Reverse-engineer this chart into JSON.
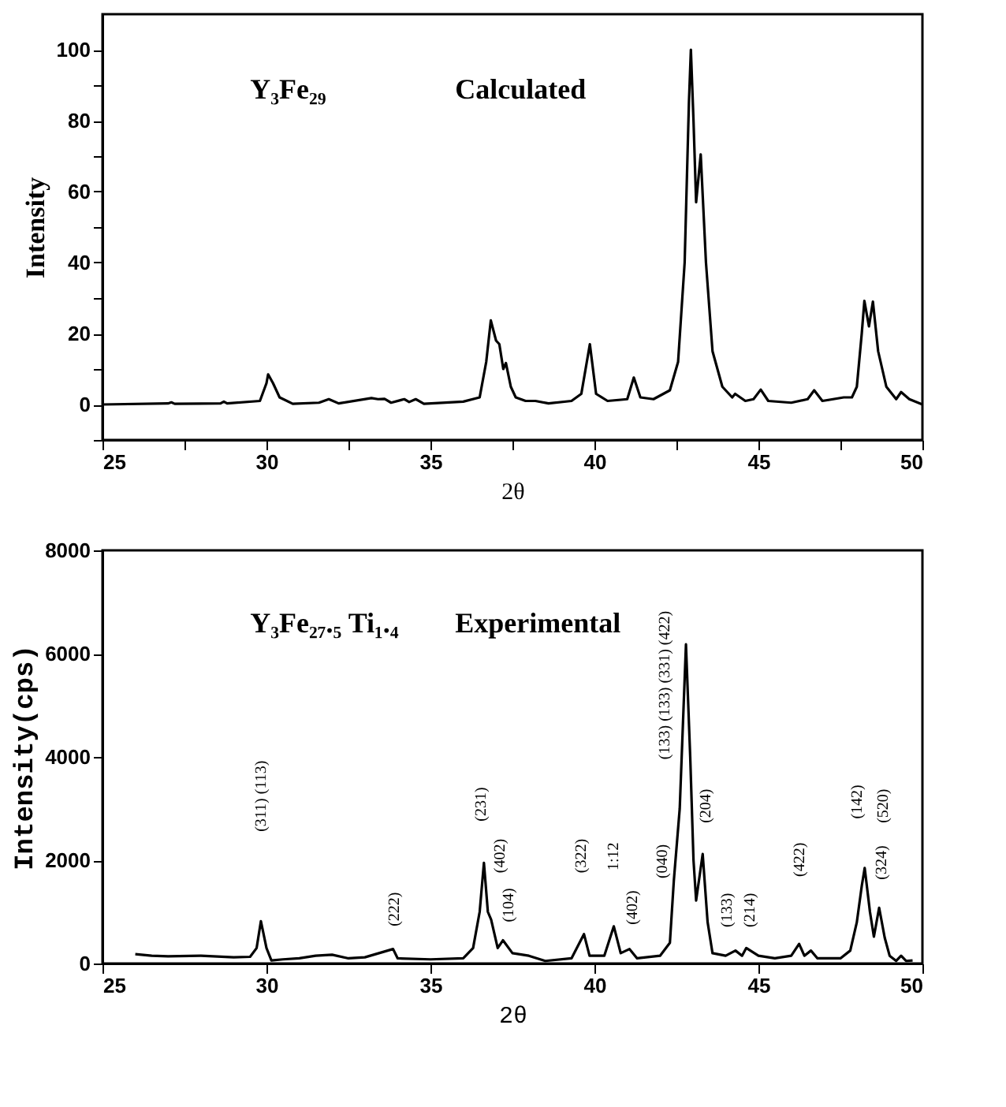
{
  "chart_data": [
    {
      "type": "line",
      "xlabel": "2θ",
      "ylabel": "Intensity",
      "xlim": [
        25,
        50
      ],
      "ylim": [
        -10,
        110
      ],
      "xticks": [
        25,
        {
          "value": 27.5,
          "label": null
        },
        30,
        {
          "value": 32.5,
          "label": null
        },
        35,
        {
          "value": 37.5,
          "label": null
        },
        40,
        {
          "value": 42.5,
          "label": null
        },
        45,
        {
          "value": 47.5,
          "label": null
        },
        50
      ],
      "yticks": [
        {
          "value": -10,
          "label": null
        },
        0,
        {
          "value": 10,
          "label": null
        },
        20,
        {
          "value": 30,
          "label": null
        },
        40,
        {
          "value": 50,
          "label": null
        },
        60,
        {
          "value": 70,
          "label": null
        },
        80,
        {
          "value": 90,
          "label": null
        },
        100
      ],
      "grid": false,
      "marker": "none",
      "line_style": "solid",
      "annotations": [
        "Y₃Fe₂₉",
        "Calculated"
      ],
      "series": [
        {
          "color": "#000000",
          "x": [
            25,
            27.0,
            27.1,
            27.2,
            28.6,
            28.7,
            28.8,
            29.8,
            30.0,
            30.05,
            30.2,
            30.4,
            30.8,
            31.6,
            31.9,
            32.2,
            33.2,
            33.4,
            33.6,
            33.8,
            34.2,
            34.35,
            34.55,
            34.8,
            36.0,
            36.5,
            36.7,
            36.84,
            37.0,
            37.1,
            37.22,
            37.3,
            37.45,
            37.6,
            37.9,
            38.2,
            38.6,
            39.3,
            39.6,
            39.86,
            40.05,
            40.4,
            41.0,
            41.2,
            41.4,
            41.8,
            42.3,
            42.55,
            42.75,
            42.88,
            42.94,
            43.02,
            43.1,
            43.24,
            43.4,
            43.6,
            43.9,
            44.2,
            44.29,
            44.6,
            44.85,
            45.07,
            45.3,
            46.0,
            46.5,
            46.7,
            46.95,
            47.6,
            47.85,
            48.0,
            48.15,
            48.23,
            48.37,
            48.49,
            48.65,
            48.9,
            49.2,
            49.35,
            49.6,
            50
          ],
          "values": [
            0,
            0.3,
            0.6,
            0.2,
            0.3,
            0.8,
            0.3,
            1,
            6,
            8.5,
            6,
            2,
            0.2,
            0.5,
            1.5,
            0.3,
            1.8,
            1.5,
            1.6,
            0.5,
            1.5,
            0.7,
            1.5,
            0.2,
            0.8,
            2,
            12,
            23.7,
            18,
            17,
            10,
            11.7,
            5,
            2,
            1,
            1,
            0.3,
            1,
            3,
            17,
            3,
            1,
            1.5,
            7.6,
            2,
            1.5,
            4,
            12,
            40,
            85,
            100,
            80,
            57,
            70.5,
            40,
            15,
            5,
            2,
            3,
            1,
            1.5,
            4.2,
            1,
            0.5,
            1.5,
            4,
            1,
            2,
            2,
            5,
            20,
            29.2,
            22,
            29,
            15,
            5,
            1.5,
            3.5,
            1.5,
            0
          ]
        }
      ]
    },
    {
      "type": "line",
      "xlabel": "2θ",
      "ylabel": "Intensity(cps)",
      "xlim": [
        25,
        50
      ],
      "ylim": [
        0,
        8000
      ],
      "xticks": [
        25,
        30,
        35,
        40,
        45,
        50
      ],
      "yticks": [
        0,
        2000,
        4000,
        6000,
        8000
      ],
      "grid": false,
      "marker": "none",
      "line_style": "solid",
      "annotations": [
        "Y₃Fe₂₇.₅ Ti₁.₄",
        "Experimental",
        "(311) (113)",
        "(222)",
        "(231)",
        "(402)",
        "(104)",
        "(322)",
        "1:12",
        "(402)",
        "(040)",
        "(133) (133) (331) (422)",
        "(204)",
        "(133)",
        "(214)",
        "(422)",
        "(142)",
        "(520)",
        "(324)"
      ],
      "series": [
        {
          "color": "#000000",
          "x": [
            26.0,
            26.5,
            27.0,
            28.0,
            29.0,
            29.5,
            29.7,
            29.83,
            30.0,
            30.15,
            30.5,
            31.0,
            31.5,
            32.0,
            32.5,
            33.0,
            33.86,
            34.0,
            35.0,
            36.0,
            36.3,
            36.5,
            36.63,
            36.75,
            36.85,
            37.05,
            37.21,
            37.5,
            38.0,
            38.5,
            39.3,
            39.68,
            39.85,
            40.3,
            40.59,
            40.8,
            41.07,
            41.3,
            42.0,
            42.3,
            42.42,
            42.6,
            42.79,
            42.92,
            43.02,
            43.1,
            43.3,
            43.45,
            43.6,
            44.0,
            44.3,
            44.5,
            44.63,
            45.0,
            45.5,
            46.0,
            46.24,
            46.4,
            46.6,
            46.8,
            47.5,
            47.8,
            48.0,
            48.15,
            48.24,
            48.4,
            48.52,
            48.68,
            48.85,
            49.0,
            49.2,
            49.35,
            49.5,
            49.7
          ],
          "values": [
            180,
            150,
            140,
            150,
            120,
            130,
            300,
            820,
            300,
            60,
            80,
            100,
            150,
            170,
            100,
            120,
            280,
            100,
            80,
            100,
            300,
            1000,
            1950,
            1000,
            850,
            300,
            450,
            200,
            150,
            50,
            100,
            570,
            150,
            150,
            720,
            200,
            280,
            100,
            150,
            400,
            1600,
            3000,
            6180,
            4000,
            2000,
            1220,
            2120,
            800,
            200,
            150,
            250,
            150,
            300,
            150,
            100,
            150,
            380,
            150,
            250,
            100,
            100,
            250,
            800,
            1500,
            1850,
            1000,
            520,
            1080,
            500,
            150,
            50,
            150,
            50,
            60
          ]
        }
      ]
    }
  ]
}
